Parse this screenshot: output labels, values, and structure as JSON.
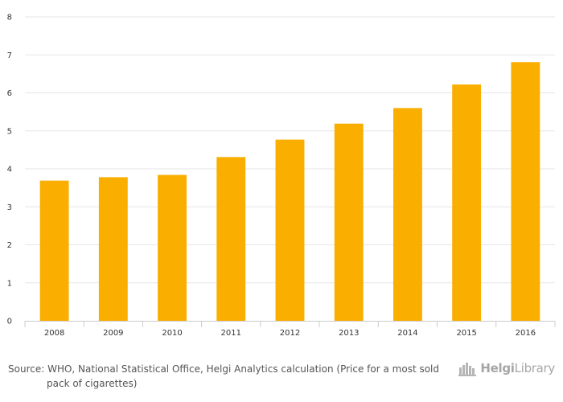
{
  "chart_data": {
    "type": "bar",
    "categories": [
      "2008",
      "2009",
      "2010",
      "2011",
      "2012",
      "2013",
      "2014",
      "2015",
      "2016"
    ],
    "values": [
      3.69,
      3.78,
      3.84,
      4.31,
      4.77,
      5.19,
      5.6,
      6.22,
      6.81
    ],
    "title": "",
    "xlabel": "",
    "ylabel": "",
    "ylim": [
      0,
      8
    ],
    "yticks": [
      "0",
      "1",
      "2",
      "3",
      "4",
      "5",
      "6",
      "7",
      "8"
    ],
    "grid": true,
    "bar_color": "#F9AE00",
    "grid_color": "#e6e6e6",
    "axis_color": "#cccccc"
  },
  "footer": {
    "source": "Source: WHO, National Statistical Office, Helgi Analytics calculation (Price for a most sold pack of cigarettes)",
    "brand_bold": "Helgi",
    "brand_rest": "Library",
    "brand_icon": "helgi-library-logo-icon"
  }
}
